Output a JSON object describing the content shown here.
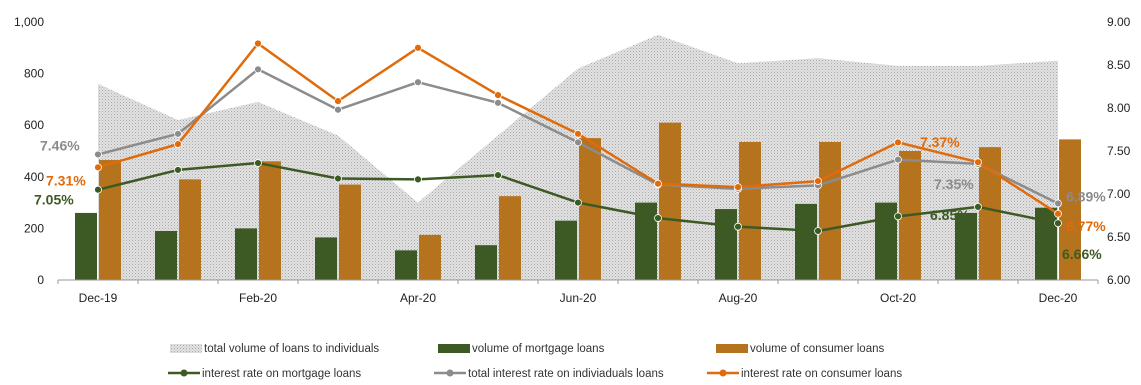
{
  "chart_data": {
    "type": "bar+line+area",
    "title": "",
    "xlabel": "",
    "ylabel": "",
    "categories": [
      "Dec-19",
      "Jan-20",
      "Feb-20",
      "Mar-20",
      "Apr-20",
      "May-20",
      "Jun-20",
      "Jul-20",
      "Aug-20",
      "Sep-20",
      "Oct-20",
      "Nov-20",
      "Dec-20"
    ],
    "x_tick_labels": [
      "Dec-19",
      "",
      "Feb-20",
      "",
      "Apr-20",
      "",
      "Jun-20",
      "",
      "Aug-20",
      "",
      "Oct-20",
      "",
      "Dec-20"
    ],
    "y_left": {
      "ylim": [
        0,
        1000
      ],
      "ticks": [
        "0",
        "200",
        "400",
        "600",
        "800",
        "1,000"
      ],
      "tick_values": [
        0,
        200,
        400,
        600,
        800,
        1000
      ]
    },
    "y_right": {
      "ylim": [
        6.0,
        9.0
      ],
      "ticks": [
        "6.00",
        "6.50",
        "7.00",
        "7.50",
        "8.00",
        "8.50",
        "9.00"
      ],
      "tick_values": [
        6.0,
        6.5,
        7.0,
        7.5,
        8.0,
        8.5,
        9.0
      ]
    },
    "series": [
      {
        "name": "total volume of loans to individuals",
        "kind": "area",
        "axis": "left",
        "color": "#c8c8c8",
        "values": [
          760,
          620,
          690,
          560,
          300,
          560,
          820,
          950,
          840,
          860,
          830,
          830,
          850
        ]
      },
      {
        "name": "volume of mortgage loans",
        "kind": "bar",
        "axis": "left",
        "color": "#3d5a25",
        "values": [
          260,
          190,
          200,
          165,
          115,
          135,
          230,
          300,
          275,
          295,
          300,
          260,
          280
        ]
      },
      {
        "name": "volume of consumer loans",
        "kind": "bar",
        "axis": "left",
        "color": "#b5731e",
        "values": [
          465,
          390,
          460,
          370,
          175,
          325,
          550,
          610,
          535,
          535,
          500,
          515,
          545
        ]
      },
      {
        "name": "interest rate on mortgage loans",
        "kind": "line",
        "axis": "right",
        "color": "#3d5a25",
        "values": [
          7.05,
          7.28,
          7.36,
          7.18,
          7.17,
          7.22,
          6.9,
          6.72,
          6.62,
          6.57,
          6.74,
          6.85,
          6.66
        ]
      },
      {
        "name": "total interest rate on indiviaduals loans",
        "kind": "line",
        "axis": "right",
        "color": "#8c8c8c",
        "values": [
          7.46,
          7.7,
          8.45,
          7.98,
          8.3,
          8.06,
          7.6,
          7.11,
          7.06,
          7.1,
          7.4,
          7.35,
          6.89
        ]
      },
      {
        "name": "interest rate on consumer loans",
        "kind": "line",
        "axis": "right",
        "color": "#e06b0c",
        "values": [
          7.31,
          7.58,
          8.75,
          8.08,
          8.7,
          8.15,
          7.7,
          7.12,
          7.08,
          7.15,
          7.6,
          7.37,
          6.77
        ]
      }
    ],
    "data_labels": [
      {
        "text": "7.46%",
        "series": 4,
        "index": 0,
        "color": "#8c8c8c"
      },
      {
        "text": "7.31%",
        "series": 5,
        "index": 0,
        "color": "#e06b0c"
      },
      {
        "text": "7.05%",
        "series": 3,
        "index": 0,
        "color": "#3d5a25"
      },
      {
        "text": "7.37%",
        "series": 5,
        "index": 11,
        "color": "#e06b0c"
      },
      {
        "text": "7.35%",
        "series": 4,
        "index": 11,
        "color": "#8c8c8c"
      },
      {
        "text": "6.85%",
        "series": 3,
        "index": 11,
        "color": "#3d5a25"
      },
      {
        "text": "6.89%",
        "series": 4,
        "index": 12,
        "color": "#8c8c8c"
      },
      {
        "text": "6.77%",
        "series": 5,
        "index": 12,
        "color": "#e06b0c"
      },
      {
        "text": "6.66%",
        "series": 3,
        "index": 12,
        "color": "#3d5a25"
      }
    ],
    "grid": false,
    "legend": "bottom"
  }
}
